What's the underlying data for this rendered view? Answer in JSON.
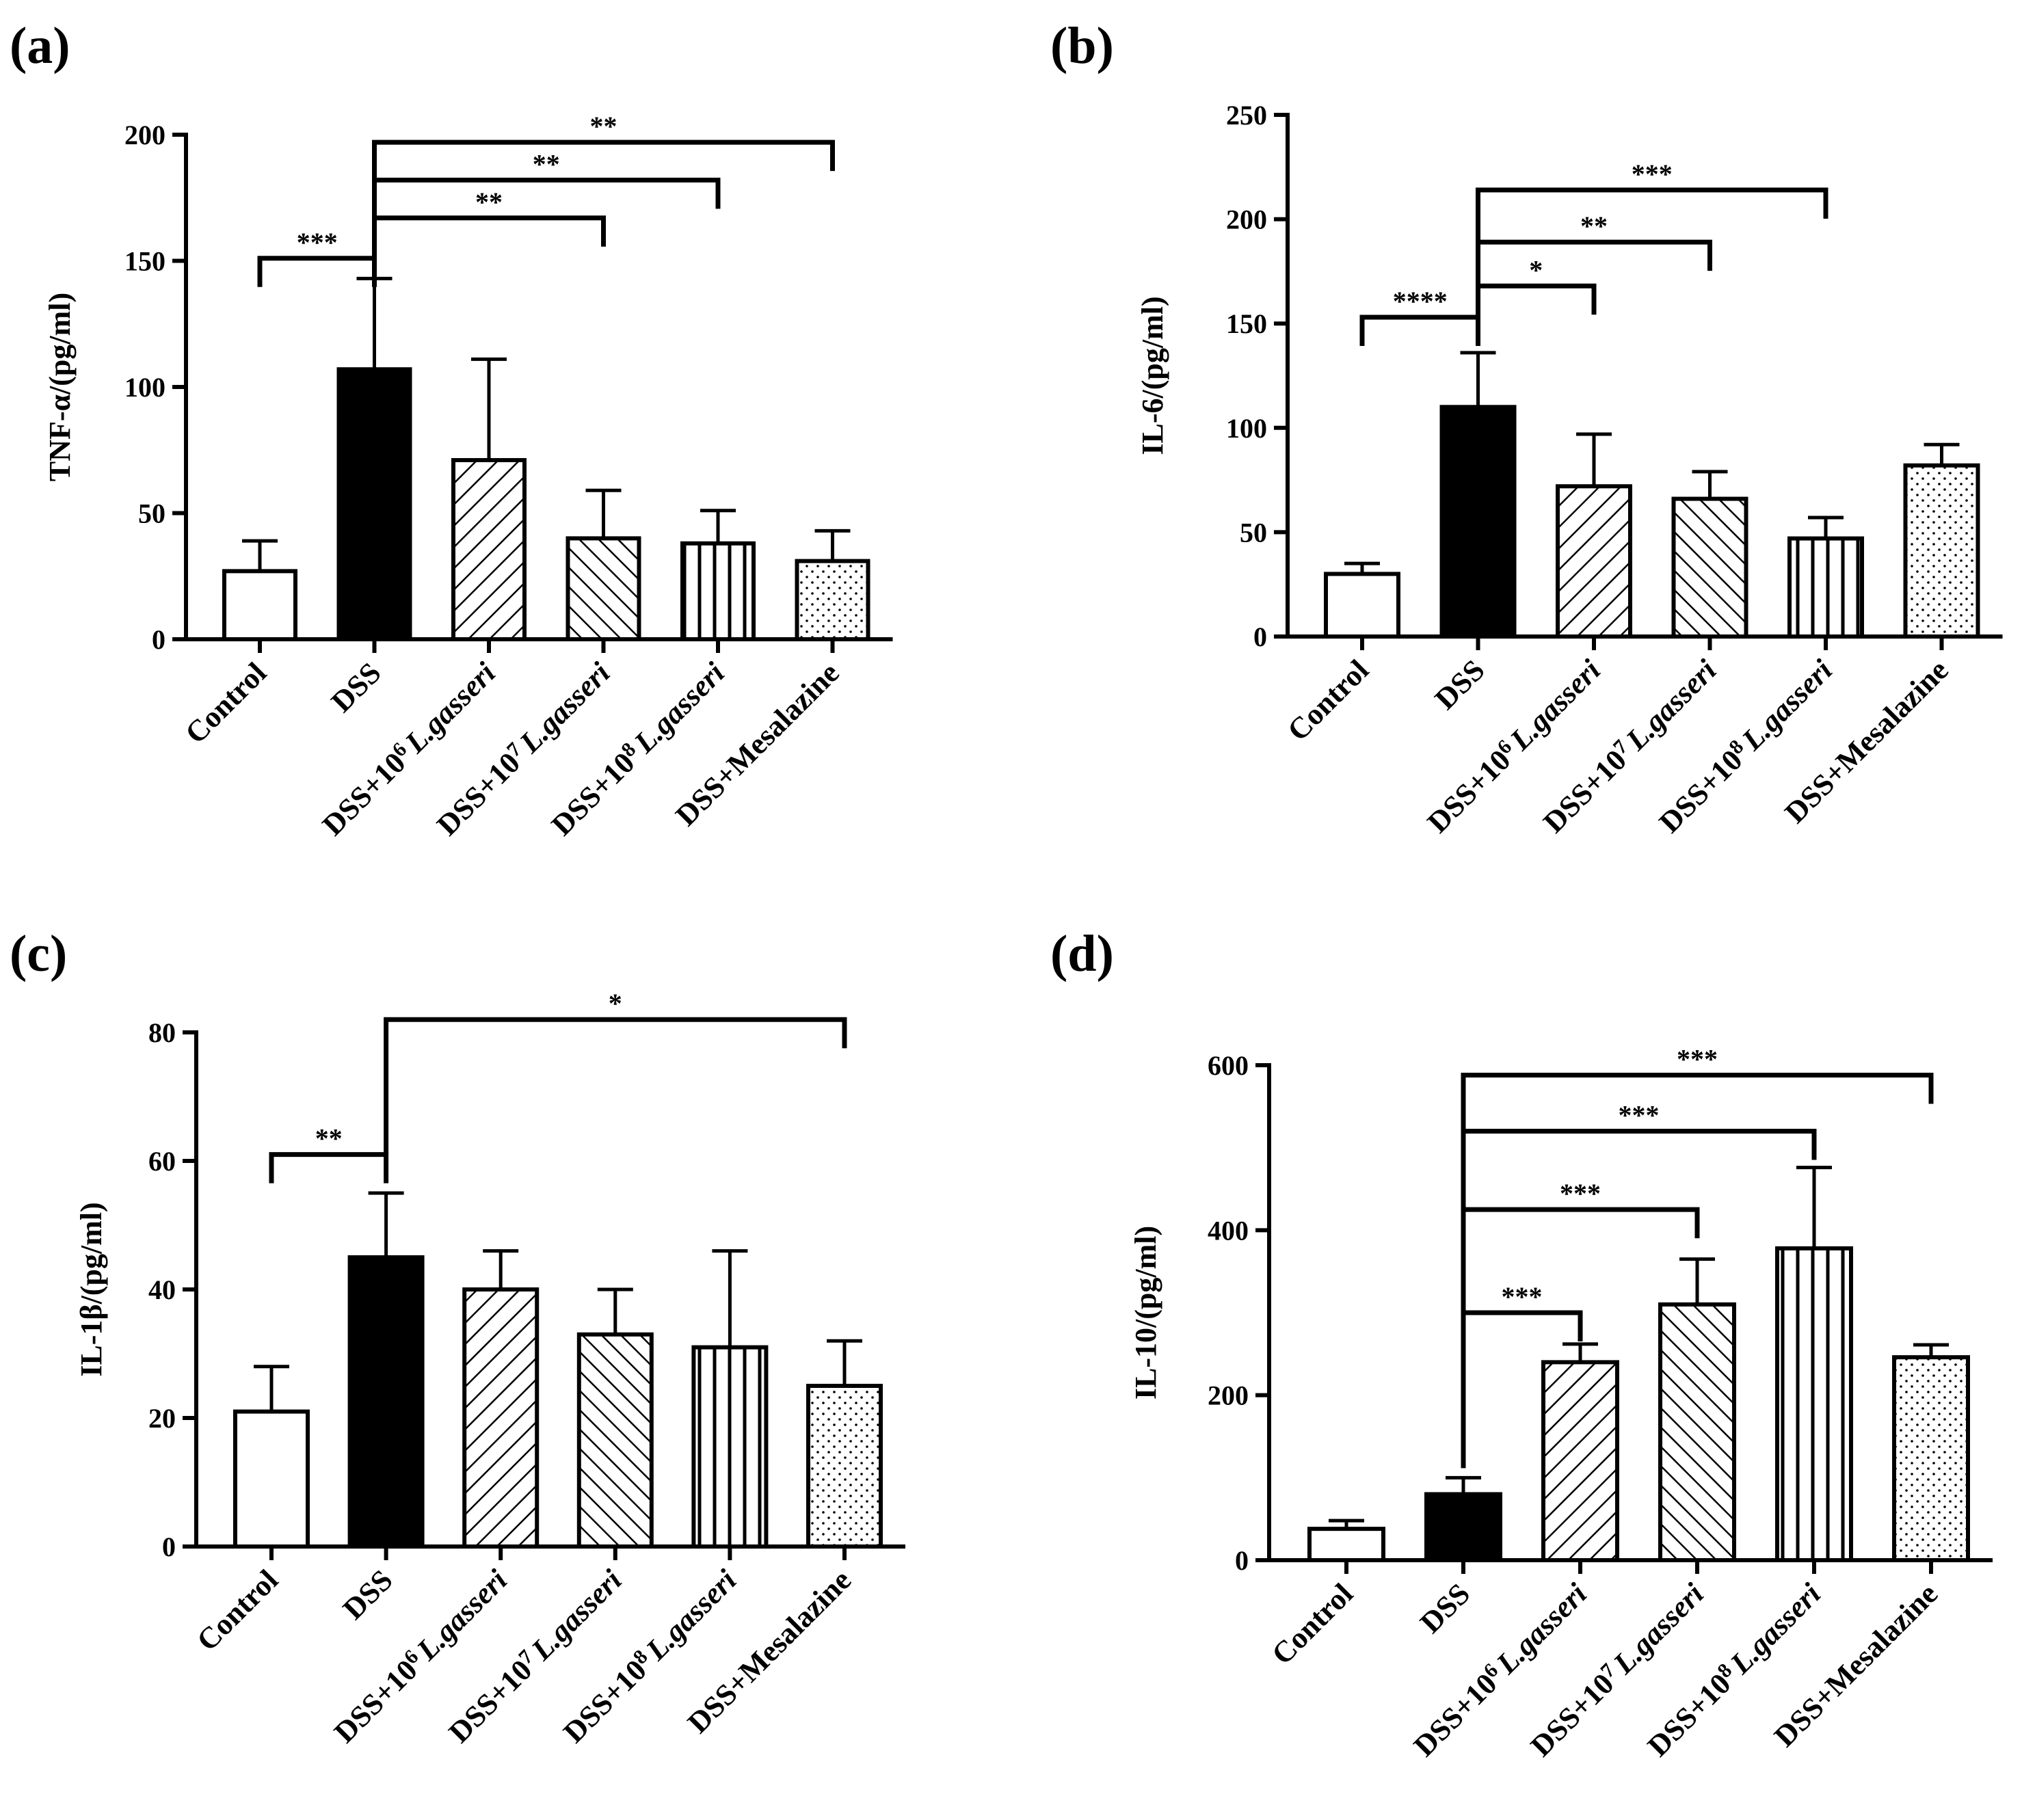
{
  "chart_data": [
    {
      "panel": "(a)",
      "type": "bar",
      "ylabel": "TNF-α/(pg/ml)",
      "ylim": [
        0,
        200
      ],
      "yticks": [
        "0",
        "50",
        "100",
        "150",
        "200"
      ],
      "categories": [
        {
          "pre": "Control"
        },
        {
          "pre": "DSS"
        },
        {
          "pre": "DSS+10",
          "sup": "6",
          "ital": "L.gasseri"
        },
        {
          "pre": "DSS+10",
          "sup": "7",
          "ital": "L.gasseri"
        },
        {
          "pre": "DSS+10",
          "sup": "8",
          "ital": "L.gasseri"
        },
        {
          "pre": "DSS+Mesalazine"
        }
      ],
      "values": [
        27,
        107,
        71,
        40,
        38,
        31
      ],
      "errors": [
        12,
        36,
        40,
        19,
        13,
        12
      ],
      "comparisons": [
        {
          "a": 0,
          "b": 1,
          "label": "***"
        },
        {
          "a": 1,
          "b": 3,
          "label": "**"
        },
        {
          "a": 1,
          "b": 4,
          "label": "**"
        },
        {
          "a": 1,
          "b": 5,
          "label": "**"
        }
      ]
    },
    {
      "panel": "(b)",
      "type": "bar",
      "ylabel": "IL-6/(pg/ml)",
      "ylim": [
        0,
        250
      ],
      "yticks": [
        "0",
        "50",
        "100",
        "150",
        "200",
        "250"
      ],
      "categories": [
        {
          "pre": "Control"
        },
        {
          "pre": "DSS"
        },
        {
          "pre": "DSS+10",
          "sup": "6",
          "ital": "L.gasseri"
        },
        {
          "pre": "DSS+10",
          "sup": "7",
          "ital": "L.gasseri"
        },
        {
          "pre": "DSS+10",
          "sup": "8",
          "ital": "L.gasseri"
        },
        {
          "pre": "DSS+Mesalazine"
        }
      ],
      "values": [
        30,
        110,
        72,
        66,
        47,
        82
      ],
      "errors": [
        5,
        26,
        25,
        13,
        10,
        10
      ],
      "comparisons": [
        {
          "a": 0,
          "b": 1,
          "label": "****"
        },
        {
          "a": 1,
          "b": 2,
          "label": "*"
        },
        {
          "a": 1,
          "b": 3,
          "label": "**"
        },
        {
          "a": 1,
          "b": 4,
          "label": "***"
        }
      ]
    },
    {
      "panel": "(c)",
      "type": "bar",
      "ylabel": "IL-1β/(pg/ml)",
      "ylim": [
        0,
        80
      ],
      "yticks": [
        "0",
        "20",
        "40",
        "60",
        "80"
      ],
      "categories": [
        {
          "pre": "Control"
        },
        {
          "pre": "DSS"
        },
        {
          "pre": "DSS+10",
          "sup": "6",
          "ital": "L.gasseri"
        },
        {
          "pre": "DSS+10",
          "sup": "7",
          "ital": "L.gasseri"
        },
        {
          "pre": "DSS+10",
          "sup": "8",
          "ital": "L.gasseri"
        },
        {
          "pre": "DSS+Mesalazine"
        }
      ],
      "values": [
        21,
        45,
        40,
        33,
        31,
        25
      ],
      "errors": [
        7,
        10,
        6,
        7,
        15,
        7
      ],
      "comparisons": [
        {
          "a": 0,
          "b": 1,
          "label": "**"
        },
        {
          "a": 1,
          "b": 5,
          "label": "*"
        }
      ]
    },
    {
      "panel": "(d)",
      "type": "bar",
      "ylabel": "IL-10/(pg/ml)",
      "ylim": [
        0,
        600
      ],
      "yticks": [
        "0",
        "200",
        "400",
        "600"
      ],
      "categories": [
        {
          "pre": "Control"
        },
        {
          "pre": "DSS"
        },
        {
          "pre": "DSS+10",
          "sup": "6",
          "ital": "L.gasseri"
        },
        {
          "pre": "DSS+10",
          "sup": "7",
          "ital": "L.gasseri"
        },
        {
          "pre": "DSS+10",
          "sup": "8",
          "ital": "L.gasseri"
        },
        {
          "pre": "DSS+Mesalazine"
        }
      ],
      "values": [
        38,
        80,
        240,
        310,
        378,
        246
      ],
      "errors": [
        10,
        20,
        22,
        55,
        98,
        15
      ],
      "comparisons": [
        {
          "a": 1,
          "b": 2,
          "label": "***"
        },
        {
          "a": 1,
          "b": 3,
          "label": "***"
        },
        {
          "a": 1,
          "b": 4,
          "label": "***"
        },
        {
          "a": 1,
          "b": 5,
          "label": "***"
        }
      ]
    }
  ]
}
